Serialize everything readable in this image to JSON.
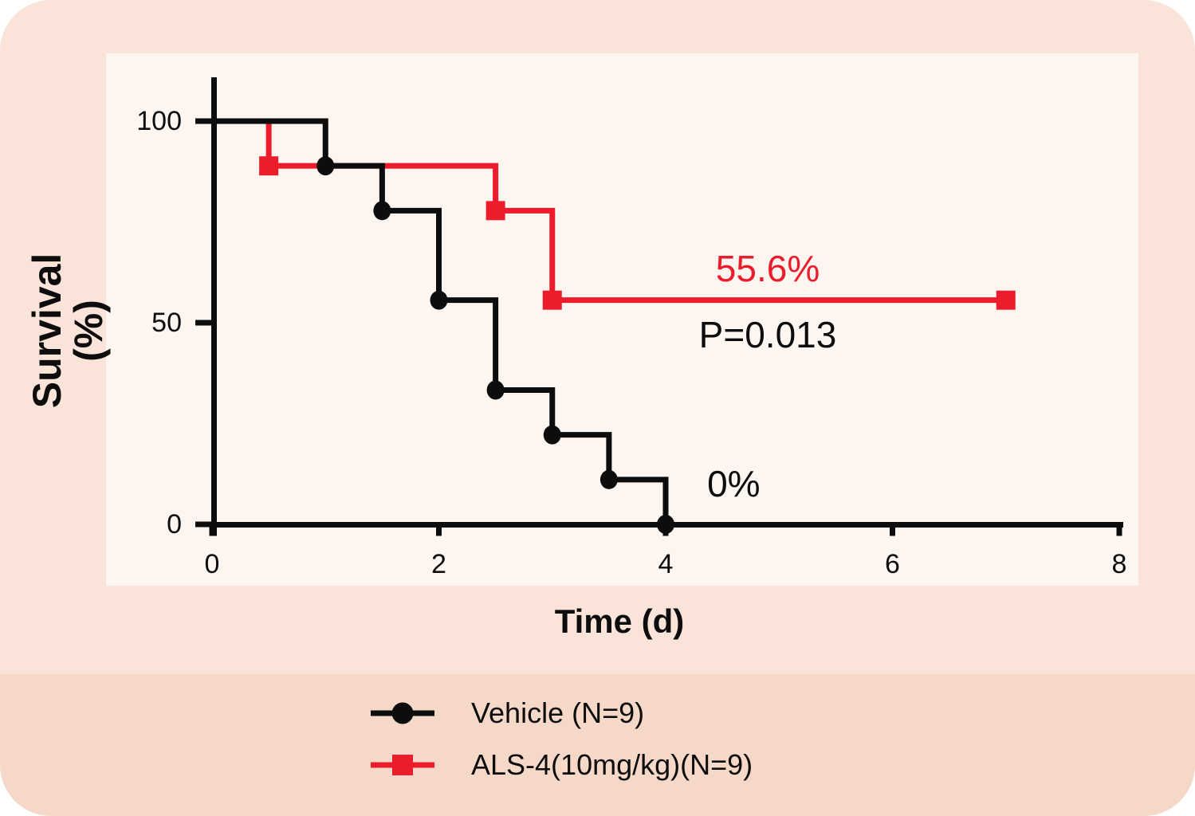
{
  "colors": {
    "page_bg": "#ffffff",
    "card_bg": "#fae3d8",
    "legend_band_bg": "#f6d8c8",
    "panel_bg": "#fdf5ef",
    "text": "#0d0d0d",
    "series_black": "#0d0d0d",
    "series_red": "#ed1c2d"
  },
  "chart_data": {
    "type": "line",
    "subtype": "kaplan-meier-step-survival",
    "title": "",
    "xlabel": "Time (d)",
    "ylabel_line1": "Survival",
    "ylabel_line2": "(%)",
    "xlim": [
      0,
      8
    ],
    "ylim": [
      0,
      100
    ],
    "xticks": [
      0,
      2,
      4,
      6,
      8
    ],
    "yticks": [
      100,
      50,
      0
    ],
    "grid": false,
    "legend_position": "bottom-left-band",
    "series": [
      {
        "name": "Vehicle (N=9)",
        "color": "#0d0d0d",
        "marker": "circle",
        "steps": [
          [
            0,
            100
          ],
          [
            1,
            100
          ],
          [
            1,
            88.9
          ],
          [
            1.5,
            88.9
          ],
          [
            1.5,
            77.8
          ],
          [
            2,
            77.8
          ],
          [
            2,
            55.6
          ],
          [
            2.5,
            55.6
          ],
          [
            2.5,
            33.3
          ],
          [
            3,
            33.3
          ],
          [
            3,
            22.2
          ],
          [
            3.5,
            22.2
          ],
          [
            3.5,
            11.1
          ],
          [
            4,
            11.1
          ],
          [
            4,
            0
          ]
        ],
        "markers": [
          [
            1,
            88.9
          ],
          [
            1.5,
            77.8
          ],
          [
            2,
            55.6
          ],
          [
            2.5,
            33.3
          ],
          [
            3,
            22.2
          ],
          [
            3.5,
            11.1
          ],
          [
            4,
            0
          ]
        ],
        "final_survival_label": "0%"
      },
      {
        "name": "ALS-4(10mg/kg)(N=9)",
        "color": "#ed1c2d",
        "marker": "square",
        "steps": [
          [
            0,
            100
          ],
          [
            0.5,
            100
          ],
          [
            0.5,
            88.9
          ],
          [
            2.5,
            88.9
          ],
          [
            2.5,
            77.8
          ],
          [
            3,
            77.8
          ],
          [
            3,
            55.6
          ],
          [
            7,
            55.6
          ]
        ],
        "markers": [
          [
            0.5,
            88.9
          ],
          [
            2.5,
            77.8
          ],
          [
            3,
            55.6
          ],
          [
            7,
            55.6
          ]
        ],
        "final_survival_label": "55.6%"
      }
    ],
    "annotations": [
      {
        "text": "55.6%",
        "color": "#ed1c2d",
        "t": 4.9,
        "s": 63.5
      },
      {
        "text": "P=0.013",
        "color": "#0d0d0d",
        "t": 4.9,
        "s": 47.0
      },
      {
        "text": "0%",
        "color": "#0d0d0d",
        "t": 4.6,
        "s": 10.1
      }
    ]
  }
}
